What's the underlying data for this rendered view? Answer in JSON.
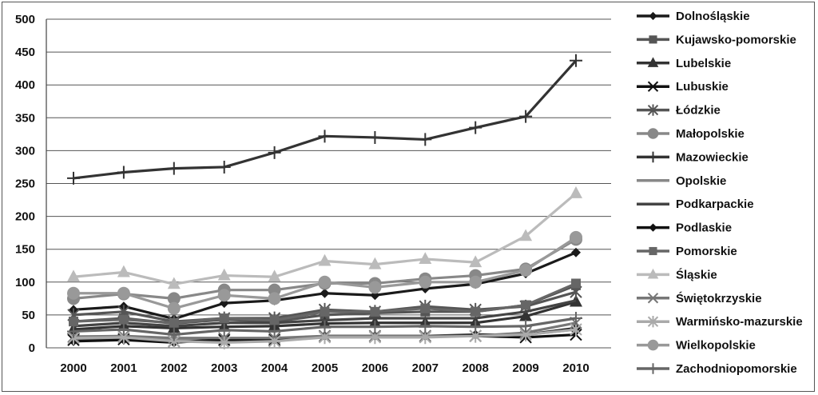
{
  "chart_data": {
    "type": "line",
    "title": "",
    "xlabel": "",
    "ylabel": "",
    "ylim": [
      0,
      500
    ],
    "yticks": [
      0,
      50,
      100,
      150,
      200,
      250,
      300,
      350,
      400,
      450,
      500
    ],
    "grid": "horizontal",
    "legend_position": "right",
    "categories": [
      "2000",
      "2001",
      "2002",
      "2003",
      "2004",
      "2005",
      "2006",
      "2007",
      "2008",
      "2009",
      "2010"
    ],
    "series": [
      {
        "name": "Dolnośląskie",
        "marker": "diamond",
        "color": "#1a1a1a",
        "values": [
          58,
          63,
          44,
          68,
          72,
          83,
          80,
          90,
          97,
          113,
          145
        ]
      },
      {
        "name": "Kujawsko-pomorskie",
        "marker": "square",
        "color": "#555555",
        "values": [
          40,
          45,
          37,
          43,
          40,
          50,
          53,
          55,
          55,
          65,
          95
        ]
      },
      {
        "name": "Lubelskie",
        "marker": "triangle",
        "color": "#333333",
        "values": [
          28,
          33,
          30,
          32,
          33,
          37,
          38,
          38,
          38,
          48,
          70
        ]
      },
      {
        "name": "Lubuskie",
        "marker": "x",
        "color": "#111111",
        "values": [
          12,
          13,
          10,
          12,
          12,
          18,
          18,
          18,
          18,
          16,
          20
        ]
      },
      {
        "name": "Łódzkie",
        "marker": "asterisk",
        "color": "#555555",
        "values": [
          50,
          55,
          40,
          45,
          45,
          58,
          55,
          63,
          58,
          63,
          85
        ]
      },
      {
        "name": "Małopolskie",
        "marker": "circle",
        "color": "#888888",
        "values": [
          75,
          82,
          75,
          88,
          88,
          98,
          98,
          105,
          110,
          120,
          165
        ]
      },
      {
        "name": "Mazowieckie",
        "marker": "plus",
        "color": "#333333",
        "values": [
          258,
          267,
          273,
          275,
          297,
          322,
          320,
          317,
          335,
          352,
          437
        ]
      },
      {
        "name": "Opolskie",
        "marker": "none",
        "color": "#888888",
        "values": [
          12,
          14,
          12,
          14,
          14,
          17,
          17,
          18,
          18,
          20,
          28
        ]
      },
      {
        "name": "Podkarpackie",
        "marker": "none",
        "color": "#444444",
        "values": [
          33,
          38,
          33,
          38,
          38,
          42,
          45,
          45,
          45,
          55,
          72
        ]
      },
      {
        "name": "Podlaskie",
        "marker": "diamond",
        "color": "#111111",
        "values": [
          10,
          12,
          8,
          13,
          12,
          18,
          18,
          18,
          20,
          20,
          30
        ]
      },
      {
        "name": "Pomorskie",
        "marker": "square",
        "color": "#666666",
        "values": [
          40,
          43,
          38,
          45,
          42,
          55,
          55,
          60,
          55,
          65,
          98
        ]
      },
      {
        "name": "Śląskie",
        "marker": "triangle",
        "color": "#bbbbbb",
        "values": [
          108,
          115,
          97,
          110,
          108,
          132,
          127,
          135,
          130,
          170,
          235
        ]
      },
      {
        "name": "Świętokrzyskie",
        "marker": "x",
        "color": "#777777",
        "values": [
          17,
          18,
          15,
          15,
          15,
          18,
          18,
          18,
          18,
          23,
          38
        ]
      },
      {
        "name": "Warmińsko-mazurskie",
        "marker": "asterisk",
        "color": "#aaaaaa",
        "values": [
          15,
          16,
          10,
          8,
          10,
          16,
          16,
          16,
          18,
          20,
          28
        ]
      },
      {
        "name": "Wielkopolskie",
        "marker": "circle",
        "color": "#999999",
        "values": [
          83,
          83,
          60,
          80,
          75,
          100,
          92,
          100,
          100,
          118,
          168
        ]
      },
      {
        "name": "Zachodniopomorskie",
        "marker": "plus",
        "color": "#666666",
        "values": [
          25,
          28,
          20,
          27,
          25,
          32,
          32,
          33,
          32,
          33,
          45
        ]
      }
    ]
  }
}
